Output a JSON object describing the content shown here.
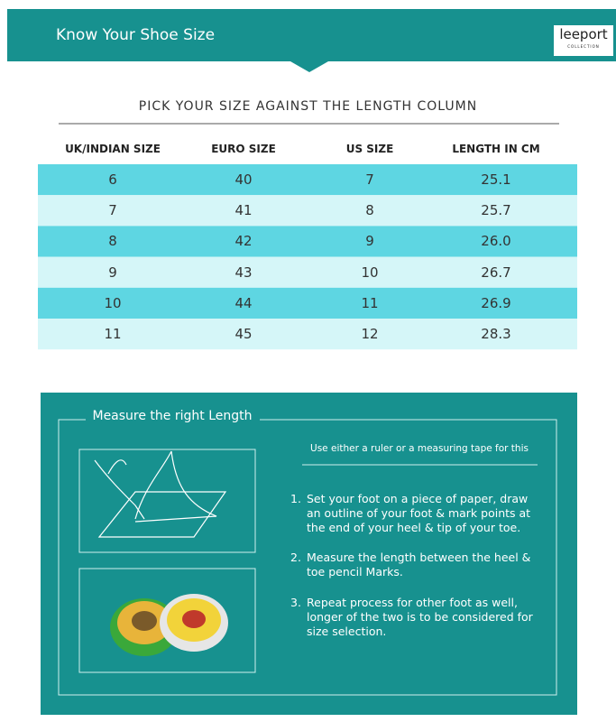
{
  "header": {
    "title": "Know Your Shoe Size",
    "logo": "leeport",
    "logo_subtitle": "COLLECTION"
  },
  "table": {
    "caption": "PICK YOUR SIZE AGAINST THE LENGTH COLUMN",
    "headers": [
      "UK/INDIAN SIZE",
      "EURO SIZE",
      "US SIZE",
      "LENGTH IN CM"
    ],
    "rows": [
      [
        "6",
        "40",
        "7",
        "25.1"
      ],
      [
        "7",
        "41",
        "8",
        "25.7"
      ],
      [
        "8",
        "42",
        "9",
        "26.0"
      ],
      [
        "9",
        "43",
        "10",
        "26.7"
      ],
      [
        "10",
        "44",
        "11",
        "26.9"
      ],
      [
        "11",
        "45",
        "12",
        "28.3"
      ]
    ]
  },
  "instructions": {
    "title": "Measure the right Length",
    "note": "Use either a ruler or a measuring tape for this",
    "steps": [
      {
        "number": "1.",
        "text": "Set your foot on a piece of paper, draw an outline of your foot & mark points at the end of your heel & tip of your toe."
      },
      {
        "number": "2.",
        "text": "Measure the length between the heel & toe pencil Marks."
      },
      {
        "number": "3.",
        "text": "Repeat process for other foot as well, longer of the two is to be considered for size selection."
      }
    ]
  }
}
